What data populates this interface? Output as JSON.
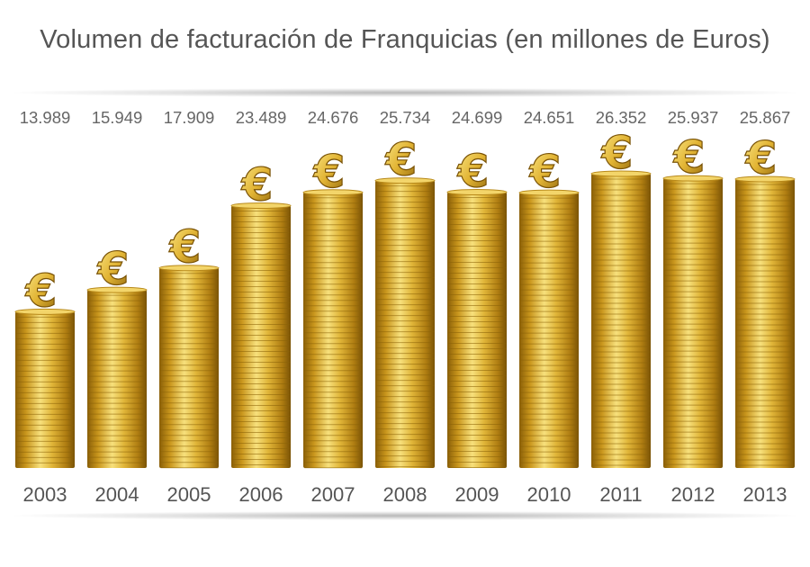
{
  "chart_data": {
    "type": "bar",
    "title": "Volumen de facturación de Franquicias (en millones de Euros)",
    "categories": [
      "2003",
      "2004",
      "2005",
      "2006",
      "2007",
      "2008",
      "2009",
      "2010",
      "2011",
      "2012",
      "2013"
    ],
    "values": [
      13989,
      15949,
      17909,
      23489,
      24676,
      25734,
      24699,
      24651,
      26352,
      25937,
      25867
    ],
    "value_labels": [
      "13.989",
      "15.949",
      "17.909",
      "23.489",
      "24.676",
      "25.734",
      "24.699",
      "24.651",
      "26.352",
      "25.937",
      "25.867"
    ],
    "ylim": [
      0,
      29000
    ],
    "xlabel": "",
    "ylabel": "",
    "grid": false,
    "bar_style": "stacked gold euro coins topped with a euro sign",
    "icon": "euro-icon"
  },
  "colors": {
    "coin_light": "#f6df7a",
    "coin_mid": "#d9ad2a",
    "coin_dark": "#9b6f0c",
    "text": "#555555"
  }
}
